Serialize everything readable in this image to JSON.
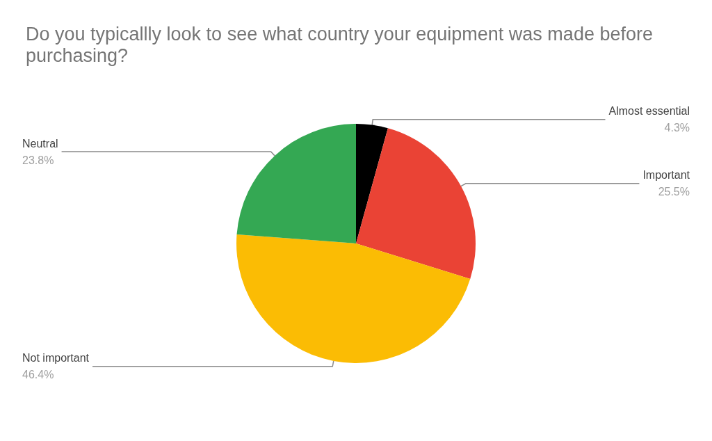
{
  "chart_data": {
    "type": "pie",
    "title": "Do you typicallly look to see what country your equipment was made before purchasing?",
    "categories": [
      "Almost essential",
      "Important",
      "Not important",
      "Neutral"
    ],
    "values": [
      4.3,
      25.5,
      46.4,
      23.8
    ],
    "colors": [
      "#000000",
      "#ea4335",
      "#fbbc04",
      "#34a853"
    ],
    "value_labels": [
      "4.3%",
      "25.5%",
      "46.4%",
      "23.8%"
    ],
    "legend": false
  }
}
